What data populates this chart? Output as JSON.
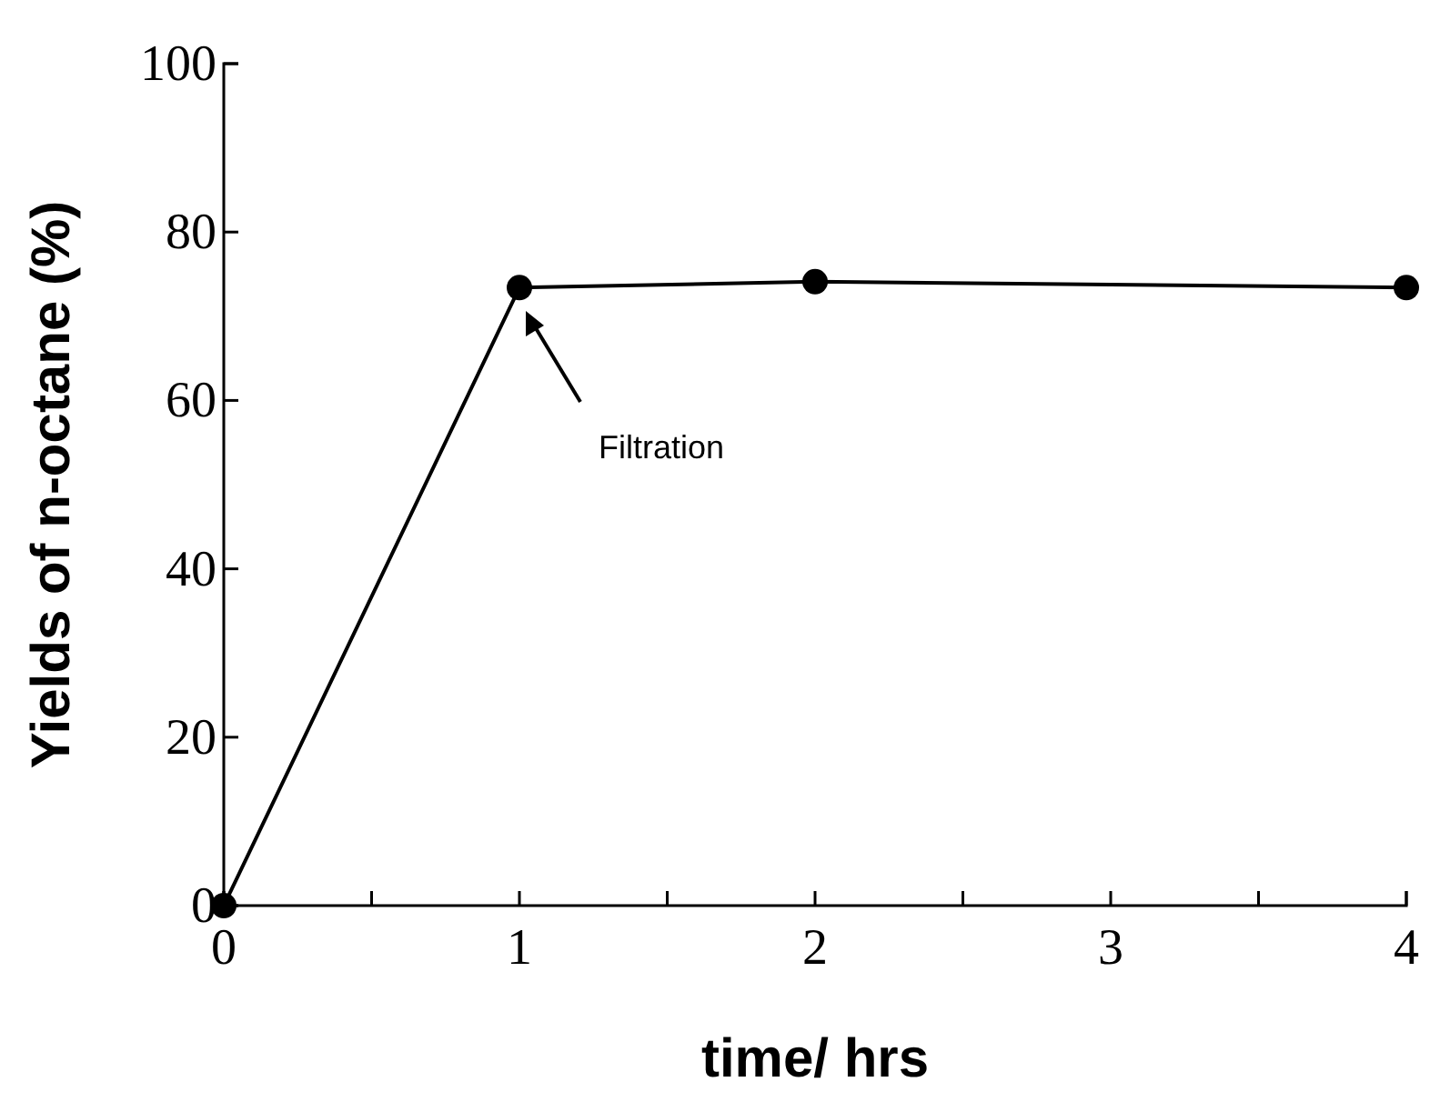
{
  "chart_data": {
    "type": "line",
    "xlabel": "time/ hrs",
    "ylabel": "Yields of n-octane (%)",
    "x": [
      0,
      1,
      2,
      4
    ],
    "series": [
      {
        "color": "#000000",
        "values": [
          0,
          73.4,
          74.1,
          73.4
        ]
      }
    ],
    "xlim": [
      0,
      4
    ],
    "xticks": [
      0,
      {
        "value": 0.5,
        "label": null
      },
      1,
      {
        "value": 1.5,
        "label": null
      },
      2,
      {
        "value": 2.5,
        "label": null
      },
      3,
      {
        "value": 3.5,
        "label": null
      },
      4
    ],
    "ylim": [
      0,
      100
    ],
    "yticks": [
      0,
      20,
      40,
      60,
      80,
      100
    ],
    "marker": "circle",
    "grid": false,
    "annotations": [
      "Filtration"
    ]
  }
}
